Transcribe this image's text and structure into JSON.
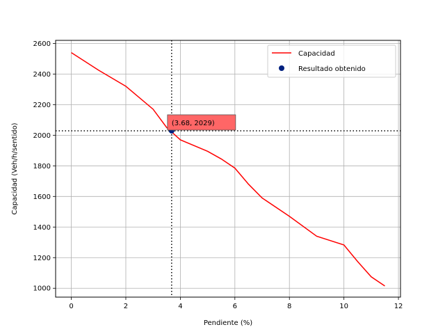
{
  "chart_data": {
    "type": "line",
    "xlabel": "Pendiente (%)",
    "ylabel": "Capacidad (Veh/h/sentido)",
    "xlim": [
      -0.575,
      12.075
    ],
    "ylim": [
      942,
      2620
    ],
    "xticks": [
      0,
      2,
      4,
      6,
      8,
      10,
      12
    ],
    "yticks": [
      1000,
      1200,
      1400,
      1600,
      1800,
      2000,
      2200,
      2400,
      2600
    ],
    "grid": true,
    "legend_position": "top-right",
    "series": [
      {
        "name": "Capacidad",
        "type": "line",
        "color": "#ff0000",
        "x": [
          0,
          1,
          2,
          3,
          3.5,
          4,
          5,
          5.5,
          6,
          6.5,
          7,
          8,
          9,
          10,
          10.5,
          11,
          11.5
        ],
        "y": [
          2540,
          2425,
          2320,
          2170,
          2050,
          1970,
          1895,
          1845,
          1785,
          1680,
          1590,
          1470,
          1340,
          1283,
          1175,
          1075,
          1015
        ]
      },
      {
        "name": "Resultado obtenido",
        "type": "scatter",
        "color": "#00207f",
        "x": [
          3.68
        ],
        "y": [
          2029
        ]
      }
    ],
    "reference_lines": {
      "vertical_x": 3.68,
      "horizontal_y": 2029,
      "style": "dotted",
      "color": "#000000"
    },
    "annotation": {
      "text": "(3.68, 2029)",
      "x": 3.68,
      "y": 2029,
      "box_color": "#ff6666"
    }
  }
}
